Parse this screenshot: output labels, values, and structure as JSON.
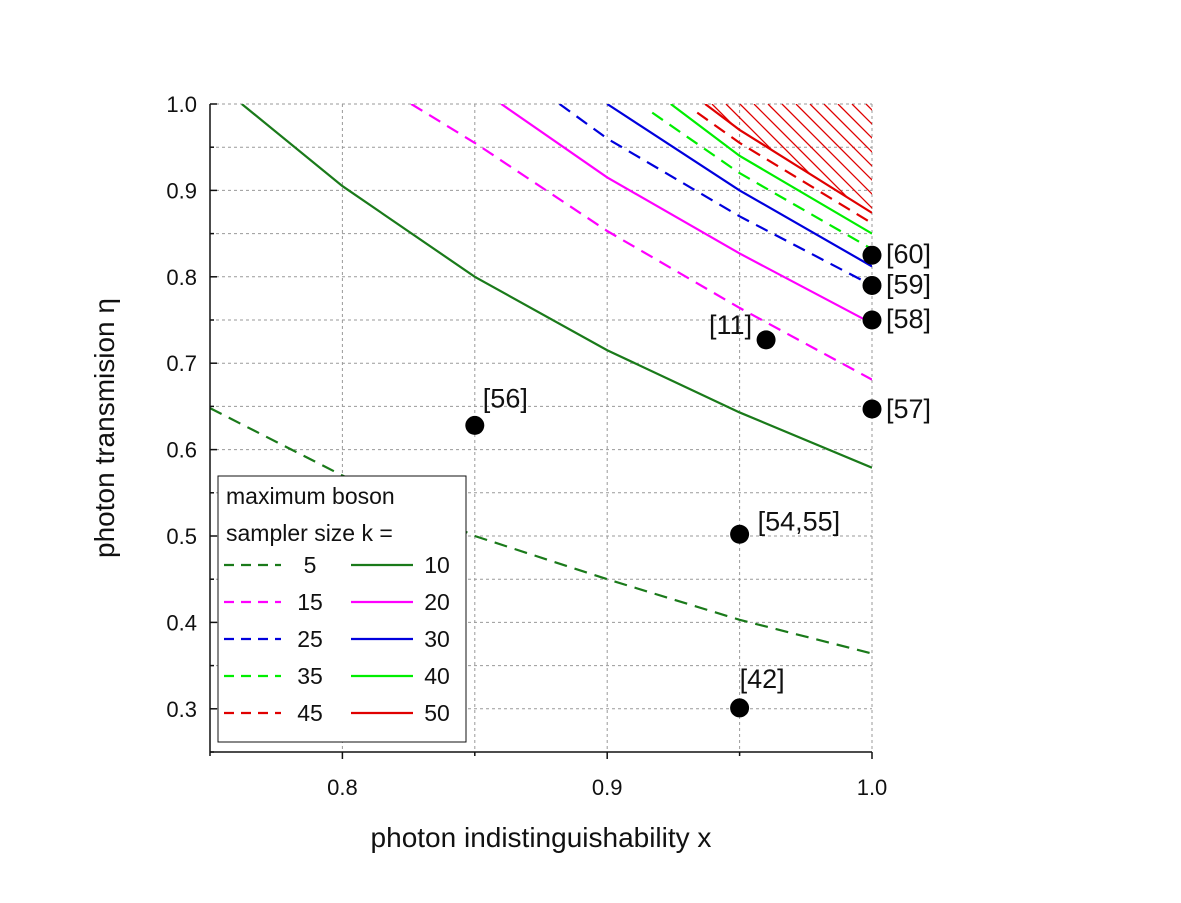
{
  "chart_data": {
    "type": "line",
    "xlabel": "photon indistinguishability x",
    "ylabel": "photon transmision η",
    "xlim": [
      0.75,
      1.0
    ],
    "ylim": [
      0.25,
      1.0
    ],
    "xticks": [
      0.8,
      0.9,
      1.0
    ],
    "xtick_labels": [
      "0.8",
      "0.9",
      "1.0"
    ],
    "yticks": [
      0.3,
      0.4,
      0.5,
      0.6,
      0.7,
      0.8,
      0.9,
      1.0
    ],
    "ytick_labels": [
      "0.3",
      "0.4",
      "0.5",
      "0.6",
      "0.7",
      "0.8",
      "0.9",
      "1.0"
    ],
    "grid": true,
    "legend": {
      "title_line1": "maximum boson",
      "title_line2": "sampler size k =",
      "placement": "bottom-left"
    },
    "shaded_region": {
      "description": "hatched region above k = 50 curve",
      "color": "#e00000"
    },
    "series": [
      {
        "name": "5",
        "k": 5,
        "style": "dashed",
        "color": "#1a7a1a",
        "x": [
          0.75,
          0.8,
          0.85,
          0.9,
          0.95,
          1.0
        ],
        "y": [
          0.648,
          0.57,
          0.5,
          0.45,
          0.403,
          0.364
        ]
      },
      {
        "name": "10",
        "k": 10,
        "style": "solid",
        "color": "#1a7a1a",
        "x": [
          0.762,
          0.8,
          0.85,
          0.9,
          0.95,
          1.0
        ],
        "y": [
          1.0,
          0.905,
          0.8,
          0.715,
          0.643,
          0.579
        ]
      },
      {
        "name": "15",
        "k": 15,
        "style": "dashed",
        "color": "#ff00ff",
        "x": [
          0.826,
          0.85,
          0.9,
          0.95,
          1.0
        ],
        "y": [
          1.0,
          0.955,
          0.853,
          0.764,
          0.681
        ]
      },
      {
        "name": "20",
        "k": 20,
        "style": "solid",
        "color": "#ff00ff",
        "x": [
          0.86,
          0.9,
          0.95,
          1.0
        ],
        "y": [
          1.0,
          0.915,
          0.827,
          0.746
        ]
      },
      {
        "name": "25",
        "k": 25,
        "style": "dashed",
        "color": "#0000dd",
        "x": [
          0.882,
          0.9,
          0.95,
          1.0
        ],
        "y": [
          1.0,
          0.96,
          0.87,
          0.79
        ]
      },
      {
        "name": "30",
        "k": 30,
        "style": "solid",
        "color": "#0000dd",
        "x": [
          0.9,
          0.95,
          1.0
        ],
        "y": [
          1.0,
          0.9,
          0.812
        ]
      },
      {
        "name": "35",
        "k": 35,
        "style": "dashed",
        "color": "#00ee00",
        "x": [
          0.917,
          0.95,
          1.0
        ],
        "y": [
          0.99,
          0.92,
          0.832
        ]
      },
      {
        "name": "40",
        "k": 40,
        "style": "solid",
        "color": "#00ee00",
        "x": [
          0.924,
          0.95,
          1.0
        ],
        "y": [
          1.0,
          0.94,
          0.85
        ]
      },
      {
        "name": "45",
        "k": 45,
        "style": "dashed",
        "color": "#e00000",
        "x": [
          0.934,
          0.95,
          1.0
        ],
        "y": [
          0.99,
          0.955,
          0.862
        ]
      },
      {
        "name": "50",
        "k": 50,
        "style": "solid",
        "color": "#e00000",
        "x": [
          0.937,
          0.95,
          1.0
        ],
        "y": [
          1.0,
          0.97,
          0.874
        ]
      }
    ],
    "points": [
      {
        "label": "[60]",
        "x": 1.0,
        "y": 0.825
      },
      {
        "label": "[59]",
        "x": 1.0,
        "y": 0.79
      },
      {
        "label": "[58]",
        "x": 1.0,
        "y": 0.75
      },
      {
        "label": "[57]",
        "x": 1.0,
        "y": 0.647
      },
      {
        "label": "[11]",
        "x": 0.96,
        "y": 0.727
      },
      {
        "label": "[56]",
        "x": 0.85,
        "y": 0.628
      },
      {
        "label": "[54,55]",
        "x": 0.95,
        "y": 0.502
      },
      {
        "label": "[42]",
        "x": 0.95,
        "y": 0.301
      }
    ]
  }
}
